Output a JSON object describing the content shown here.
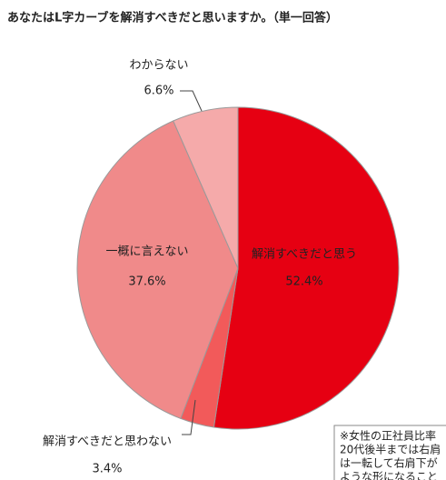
{
  "chart_data": {
    "type": "pie",
    "title": "あなたはL字カーブを解消すべきだと思いますか。（単一回答）",
    "categories": [
      "解消すべきだと思う",
      "解消すべきだと思わない",
      "一概に言えない",
      "わからない"
    ],
    "values": [
      52.4,
      3.4,
      37.6,
      6.6
    ],
    "value_labels": [
      "52.4%",
      "3.4%",
      "37.6%",
      "6.6%"
    ],
    "colors": [
      "#e60012",
      "#f25a5a",
      "#f08a8a",
      "#f5aaaa"
    ],
    "note": [
      "※女性の正社員比率",
      "20代後半までは右肩",
      "は一転して右肩下が",
      "ような形になること"
    ]
  }
}
